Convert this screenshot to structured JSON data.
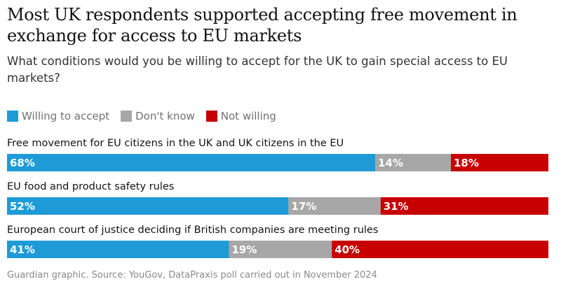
{
  "headline": "Most UK respondents supported accepting free movement in exchange for access to EU markets",
  "subtitle": "What conditions would you be willing to accept for the UK to gain special access to EU markets?",
  "source": "Guardian graphic. Source: YouGov, DataPraxis poll carried out in November 2024",
  "chart_data": {
    "type": "bar",
    "orientation": "horizontal",
    "stacked": true,
    "normalized_to": 100,
    "title": "Most UK respondents supported accepting free movement in exchange for access to EU markets",
    "subtitle": "What conditions would you be willing to accept for the UK to gain special access to EU markets?",
    "legend_position": "top-left",
    "categories": [
      "Free movement for EU citizens in the UK and UK citizens in the EU",
      "EU food and product safety rules",
      "European court of justice deciding if British companies are meeting rules"
    ],
    "series": [
      {
        "name": "Willing to accept",
        "color": "#1e9bd7",
        "values": [
          68,
          52,
          41
        ],
        "labels": [
          "68%",
          "52%",
          "41%"
        ]
      },
      {
        "name": "Don't know",
        "color": "#a7a7a7",
        "values": [
          14,
          17,
          19
        ],
        "labels": [
          "14%",
          "17%",
          "19%"
        ]
      },
      {
        "name": "Not willing",
        "color": "#c70000",
        "values": [
          18,
          31,
          40
        ],
        "labels": [
          "18%",
          "31%",
          "40%"
        ]
      }
    ]
  }
}
